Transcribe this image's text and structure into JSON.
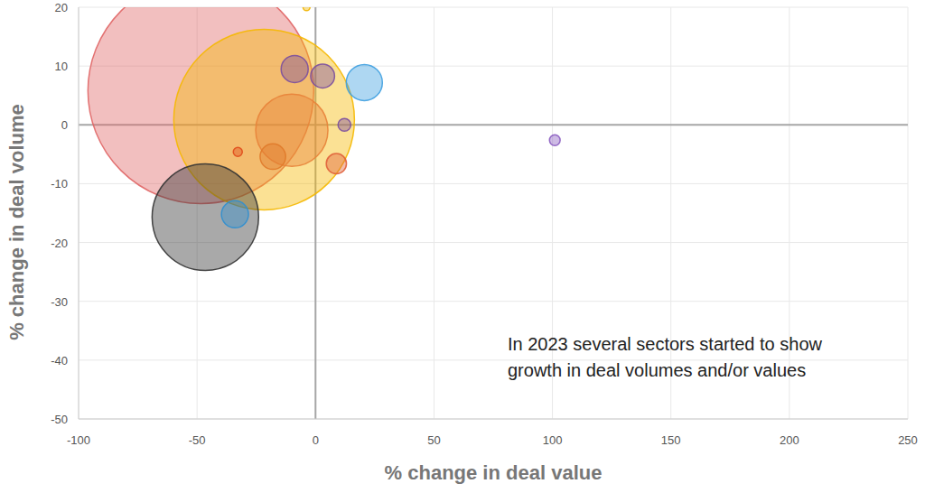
{
  "chart_data": {
    "type": "bubble",
    "xlabel": "% change in deal value",
    "ylabel": "% change in deal volume",
    "annotations": [
      "In 2023 several sectors started to show",
      "growth in deal volumes and/or values"
    ],
    "x": [
      -48.4,
      -21.7,
      -10,
      -46.5,
      -34,
      20.6,
      -8.8,
      3,
      12.2,
      8.8,
      -18,
      -32.8,
      -3.8,
      101
    ],
    "values": [
      5.8,
      0.9,
      -0.9,
      -15.7,
      -15.2,
      7.2,
      9.5,
      8.3,
      0,
      -6.6,
      -5.4,
      -4.6,
      20,
      -2.6
    ],
    "sizes": [
      625,
      400,
      64,
      139,
      9,
      16,
      9,
      7,
      2,
      5,
      8,
      1,
      0.6,
      1.4
    ],
    "colors": [
      "#e06666",
      "#f5b800",
      "#e8833a",
      "#333333",
      "#2f8fd0",
      "#3fa0e0",
      "#7b4f9e",
      "#7b4f9e",
      "#7b4f9e",
      "#e0603a",
      "#e07a2a",
      "#e04a1a",
      "#f0b400",
      "#8a5cc0"
    ],
    "xlim": [
      -100,
      250
    ],
    "xticks": [
      -100,
      -50,
      0,
      50,
      100,
      150,
      200,
      250
    ],
    "ylim": [
      -50,
      20
    ],
    "yticks": [
      -50,
      -40,
      -30,
      -20,
      -10,
      0,
      10,
      20
    ],
    "grid": true
  }
}
